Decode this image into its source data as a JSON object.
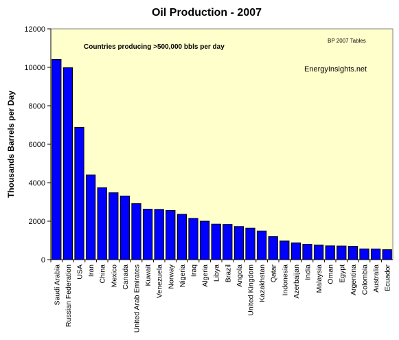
{
  "chart_data": {
    "type": "bar",
    "title": "Oil Production - 2007",
    "ylabel": "Thousands Barrels per Day",
    "xlabel": "",
    "ylim": [
      0,
      12000
    ],
    "yticks": [
      0,
      2000,
      4000,
      6000,
      8000,
      10000,
      12000
    ],
    "grid": false,
    "legend": "none",
    "annotations": {
      "subtitle": "Countries producing >500,000 bbls per day",
      "source": "BP 2007 Tables",
      "site": "EnergyInsights.net"
    },
    "categories": [
      "Saudi Arabia",
      "Russian Federation",
      "USA",
      "Iran",
      "China",
      "Mexico",
      "Canada",
      "United Arab Emirates",
      "Kuwait",
      "Venezuela",
      "Norway",
      "Nigeria",
      "Iraq",
      "Algeria",
      "Libya",
      "Brazil",
      "Angola",
      "United Kingdom",
      "Kazakhstan",
      "Qatar",
      "Indonesia",
      "Azerbaijan",
      "India",
      "Malaysia",
      "Oman",
      "Egypt",
      "Argentina",
      "Colombia",
      "Australia",
      "Ecuador"
    ],
    "values": [
      10413,
      9978,
      6879,
      4401,
      3743,
      3477,
      3309,
      2915,
      2626,
      2613,
      2556,
      2356,
      2145,
      2000,
      1848,
      1833,
      1723,
      1636,
      1490,
      1197,
      969,
      868,
      801,
      755,
      718,
      710,
      698,
      559,
      556,
      520
    ],
    "colors": {
      "bar": "#0000ff",
      "plot_background": "#ffffcc",
      "bar_edge": "#000000"
    }
  }
}
